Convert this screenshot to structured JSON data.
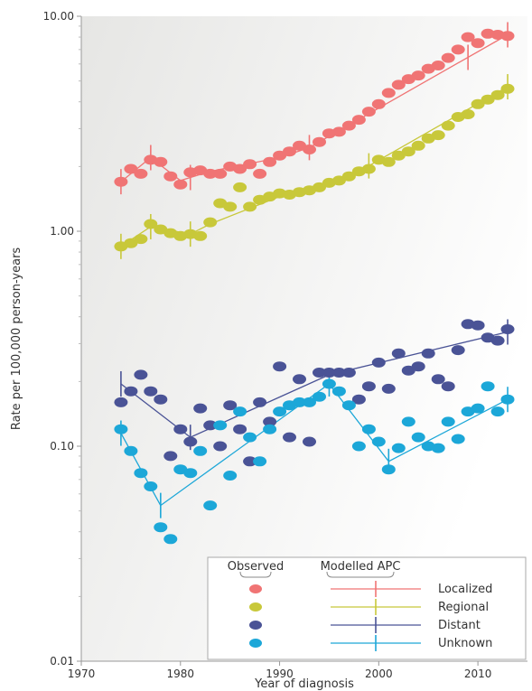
{
  "chart_data": {
    "type": "scatter",
    "xlabel": "Year of diagnosis",
    "ylabel": "Rate per 100,000 person-years",
    "xlim": [
      1970,
      2015
    ],
    "ylim": [
      0.01,
      10
    ],
    "yscale": "log",
    "x_ticks": [
      1970,
      1980,
      1990,
      2000,
      2010
    ],
    "y_ticks": [
      0.01,
      0.1,
      1,
      10
    ],
    "y_tick_labels": [
      "0.01",
      "0.10",
      "1.00",
      "10.00"
    ],
    "grid": false,
    "legend": {
      "placement": "bottom-right",
      "headers": [
        "Observed",
        "Modelled APC"
      ]
    },
    "series": [
      {
        "name": "Localized",
        "color": "#f07474",
        "observed_x": [
          1974,
          1975,
          1976,
          1977,
          1978,
          1979,
          1980,
          1981,
          1982,
          1983,
          1984,
          1985,
          1986,
          1987,
          1988,
          1989,
          1990,
          1991,
          1992,
          1993,
          1994,
          1995,
          1996,
          1997,
          1998,
          1999,
          2000,
          2001,
          2002,
          2003,
          2004,
          2005,
          2006,
          2007,
          2008,
          2009,
          2010,
          2011,
          2012,
          2013
        ],
        "observed_y": [
          1.7,
          1.95,
          1.85,
          2.15,
          2.1,
          1.8,
          1.65,
          1.88,
          1.92,
          1.85,
          1.85,
          2.0,
          1.95,
          2.05,
          1.85,
          2.1,
          2.25,
          2.35,
          2.5,
          2.4,
          2.6,
          2.85,
          2.9,
          3.1,
          3.3,
          3.6,
          3.9,
          4.4,
          4.8,
          5.1,
          5.3,
          5.7,
          5.9,
          6.4,
          7.0,
          8.0,
          7.5,
          8.3,
          8.2,
          8.1
        ],
        "modelled_x": [
          1974,
          1977,
          1980,
          1983,
          1990,
          1993,
          2013
        ],
        "modelled_y": [
          1.7,
          2.2,
          1.72,
          1.9,
          2.2,
          2.45,
          8.2
        ],
        "error_bar_x": [
          1974,
          1977,
          1981,
          1993,
          2009,
          2013
        ]
      },
      {
        "name": "Regional",
        "color": "#c8c83a",
        "observed_x": [
          1974,
          1975,
          1976,
          1977,
          1978,
          1979,
          1980,
          1981,
          1982,
          1983,
          1984,
          1985,
          1986,
          1987,
          1988,
          1989,
          1990,
          1991,
          1992,
          1993,
          1994,
          1995,
          1996,
          1997,
          1998,
          1999,
          2000,
          2001,
          2002,
          2003,
          2004,
          2005,
          2006,
          2007,
          2008,
          2009,
          2010,
          2011,
          2012,
          2013
        ],
        "observed_y": [
          0.85,
          0.88,
          0.92,
          1.08,
          1.02,
          0.98,
          0.95,
          0.97,
          0.95,
          1.1,
          1.35,
          1.3,
          1.6,
          1.3,
          1.4,
          1.45,
          1.5,
          1.48,
          1.52,
          1.55,
          1.6,
          1.68,
          1.72,
          1.8,
          1.9,
          1.95,
          2.15,
          2.1,
          2.25,
          2.35,
          2.5,
          2.7,
          2.8,
          3.1,
          3.4,
          3.5,
          3.9,
          4.1,
          4.3,
          4.6
        ],
        "modelled_x": [
          1974,
          1977,
          1981,
          1983,
          1990,
          1996,
          2013
        ],
        "modelled_y": [
          0.85,
          1.05,
          0.97,
          1.08,
          1.45,
          1.68,
          4.7
        ],
        "error_bar_x": [
          1974,
          1977,
          1981,
          1999,
          2013
        ]
      },
      {
        "name": "Distant",
        "color": "#4a5396",
        "observed_x": [
          1974,
          1975,
          1976,
          1977,
          1978,
          1979,
          1980,
          1981,
          1982,
          1983,
          1984,
          1985,
          1986,
          1987,
          1988,
          1989,
          1990,
          1991,
          1992,
          1993,
          1994,
          1995,
          1996,
          1997,
          1998,
          1999,
          2000,
          2001,
          2002,
          2003,
          2004,
          2005,
          2006,
          2007,
          2008,
          2009,
          2010,
          2011,
          2012,
          2013
        ],
        "observed_y": [
          0.16,
          0.18,
          0.215,
          0.18,
          0.165,
          0.09,
          0.12,
          0.105,
          0.15,
          0.125,
          0.1,
          0.155,
          0.12,
          0.085,
          0.16,
          0.13,
          0.235,
          0.11,
          0.205,
          0.105,
          0.22,
          0.22,
          0.22,
          0.22,
          0.165,
          0.19,
          0.245,
          0.185,
          0.27,
          0.225,
          0.235,
          0.27,
          0.205,
          0.19,
          0.28,
          0.37,
          0.365,
          0.32,
          0.31,
          0.35
        ],
        "modelled_x": [
          1974,
          1981,
          1995,
          2013
        ],
        "modelled_y": [
          0.195,
          0.11,
          0.215,
          0.34
        ],
        "error_bar_x": [
          1974,
          1981,
          2013
        ]
      },
      {
        "name": "Unknown",
        "color": "#1ca7d8",
        "observed_x": [
          1974,
          1975,
          1976,
          1977,
          1978,
          1979,
          1980,
          1981,
          1982,
          1983,
          1984,
          1985,
          1986,
          1987,
          1988,
          1989,
          1990,
          1991,
          1992,
          1993,
          1994,
          1995,
          1996,
          1997,
          1998,
          1999,
          2000,
          2001,
          2002,
          2003,
          2004,
          2005,
          2006,
          2007,
          2008,
          2009,
          2010,
          2011,
          2012,
          2013
        ],
        "observed_y": [
          0.12,
          0.095,
          0.075,
          0.065,
          0.042,
          0.037,
          0.078,
          0.075,
          0.095,
          0.053,
          0.125,
          0.073,
          0.145,
          0.11,
          0.085,
          0.12,
          0.145,
          0.155,
          0.16,
          0.16,
          0.17,
          0.195,
          0.18,
          0.155,
          0.1,
          0.12,
          0.105,
          0.078,
          0.098,
          0.13,
          0.11,
          0.1,
          0.098,
          0.13,
          0.108,
          0.145,
          0.15,
          0.19,
          0.145,
          0.165
        ],
        "modelled_x": [
          1974,
          1978,
          1995,
          2001,
          2013
        ],
        "modelled_y": [
          0.115,
          0.053,
          0.195,
          0.085,
          0.165
        ],
        "error_bar_x": [
          1974,
          1978,
          1995,
          2001,
          2013
        ]
      }
    ]
  }
}
